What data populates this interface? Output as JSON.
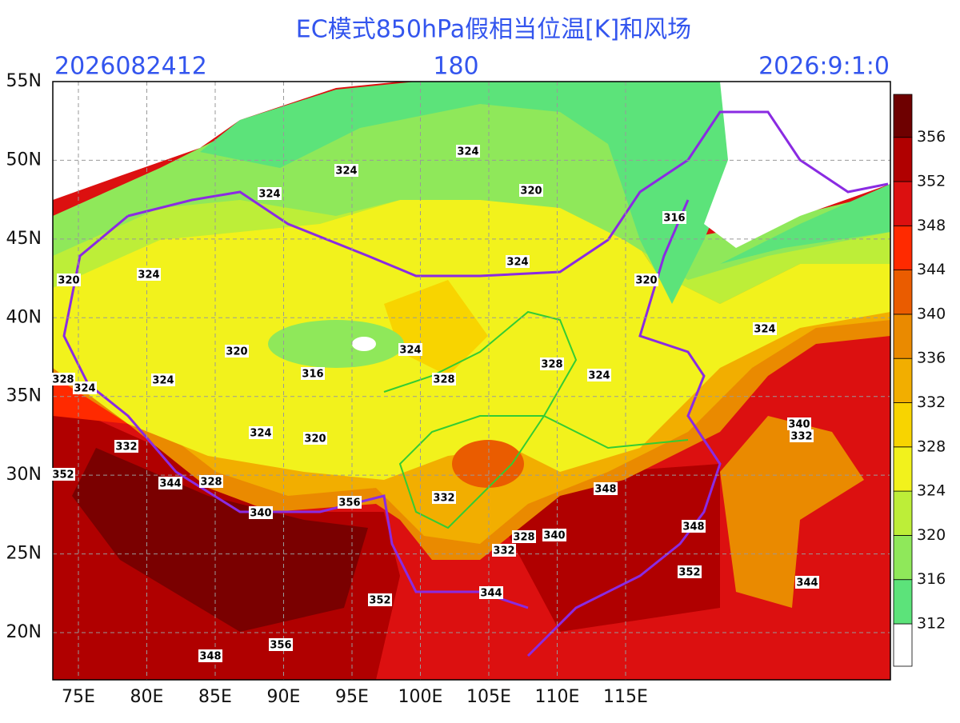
{
  "header": {
    "title": "EC模式850hPa假相当位温[K]和风场",
    "init_time": "2026082412",
    "forecast_hour": "180",
    "valid_time": "2026:9:1:0"
  },
  "axes": {
    "lat_labels": [
      "55N",
      "50N",
      "45N",
      "40N",
      "35N",
      "30N",
      "25N",
      "20N"
    ],
    "lon_labels": [
      "75E",
      "80E",
      "85E",
      "90E",
      "95E",
      "100E",
      "105E",
      "110E",
      "115E"
    ]
  },
  "colorbar": {
    "levels": [
      312,
      316,
      320,
      324,
      328,
      332,
      336,
      340,
      344,
      348,
      352,
      356
    ],
    "colors": [
      "#ffffff",
      "#5ce37a",
      "#8fe85a",
      "#bdee38",
      "#f2f21c",
      "#f8d400",
      "#f2ae00",
      "#ea8a00",
      "#ea5c00",
      "#ff2a00",
      "#dc1010",
      "#b00000",
      "#6e0000"
    ]
  },
  "contour_labels": [
    324,
    324,
    324,
    320,
    316,
    324,
    320,
    324,
    320,
    320,
    316,
    324,
    328,
    328,
    324,
    324,
    328,
    324,
    324,
    324,
    320,
    332,
    352,
    344,
    328,
    340,
    356,
    332,
    348,
    328,
    340,
    332,
    348,
    352,
    344,
    344,
    352,
    356,
    348,
    340,
    332
  ]
}
